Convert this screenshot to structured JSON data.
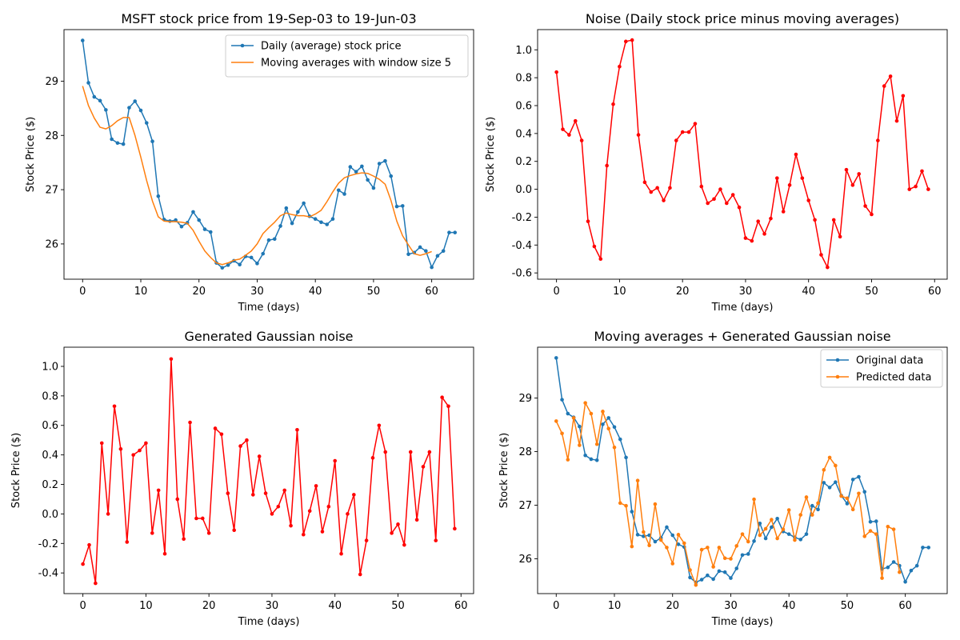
{
  "chart_data": [
    {
      "type": "line",
      "title": "MSFT stock price from 19-Sep-03 to 19-Jun-03",
      "xlabel": "Time (days)",
      "ylabel": "Stock Price ($)",
      "xlim": [
        -3.2,
        67.2
      ],
      "ylim": [
        25.35,
        29.95
      ],
      "xticks": [
        0,
        10,
        20,
        30,
        40,
        50,
        60
      ],
      "yticks": [
        26,
        27,
        28,
        29
      ],
      "legend_position": "top-right",
      "series": [
        {
          "name": "Daily (average) stock price",
          "color": "#1f77b4",
          "marker": true,
          "x_start": 0,
          "values": [
            29.75,
            28.97,
            28.71,
            28.64,
            28.47,
            27.93,
            27.86,
            27.84,
            28.51,
            28.63,
            28.46,
            28.23,
            27.89,
            26.88,
            26.45,
            26.42,
            26.44,
            26.32,
            26.39,
            26.59,
            26.44,
            26.27,
            26.22,
            25.65,
            25.56,
            25.61,
            25.69,
            25.62,
            25.77,
            25.75,
            25.64,
            25.82,
            26.07,
            26.09,
            26.33,
            26.66,
            26.38,
            26.59,
            26.75,
            26.51,
            26.46,
            26.4,
            26.36,
            26.46,
            26.99,
            26.92,
            27.42,
            27.33,
            27.43,
            27.18,
            27.03,
            27.48,
            27.53,
            27.25,
            26.69,
            26.7,
            25.81,
            25.84,
            25.94,
            25.87,
            25.57,
            25.78,
            25.87,
            26.21,
            26.21
          ]
        },
        {
          "name": "Moving averages with window size 5",
          "color": "#ff7f0e",
          "marker": false,
          "x_start": 0,
          "values": [
            28.91,
            28.55,
            28.32,
            28.15,
            28.12,
            28.18,
            28.27,
            28.33,
            28.33,
            28.0,
            27.6,
            27.17,
            26.79,
            26.5,
            26.42,
            26.41,
            26.41,
            26.4,
            26.38,
            26.25,
            26.05,
            25.87,
            25.75,
            25.65,
            25.62,
            25.65,
            25.7,
            25.72,
            25.79,
            25.87,
            26.0,
            26.19,
            26.3,
            26.4,
            26.52,
            26.57,
            26.54,
            26.52,
            26.52,
            26.5,
            26.55,
            26.62,
            26.78,
            26.96,
            27.12,
            27.22,
            27.26,
            27.29,
            27.31,
            27.3,
            27.25,
            27.19,
            27.1,
            26.8,
            26.42,
            26.15,
            25.98,
            25.82,
            25.79,
            25.82,
            25.86
          ]
        }
      ]
    },
    {
      "type": "line",
      "title": "Noise (Daily stock price minus moving averages)",
      "xlabel": "Time (days)",
      "ylabel": "Stock Price ($)",
      "xlim": [
        -3.0,
        62.0
      ],
      "ylim": [
        -0.645,
        1.145
      ],
      "xticks": [
        0,
        10,
        20,
        30,
        40,
        50,
        60
      ],
      "yticks": [
        -0.6,
        -0.4,
        -0.2,
        0.0,
        0.2,
        0.4,
        0.6,
        0.8,
        1.0
      ],
      "series": [
        {
          "color": "#ff0000",
          "marker": true,
          "x_start": 0,
          "values": [
            0.84,
            0.43,
            0.39,
            0.49,
            0.35,
            -0.23,
            -0.41,
            -0.5,
            0.17,
            0.61,
            0.88,
            1.06,
            1.07,
            0.39,
            0.05,
            -0.02,
            0.01,
            -0.08,
            0.01,
            0.35,
            0.41,
            0.41,
            0.47,
            0.02,
            -0.1,
            -0.07,
            0.0,
            -0.1,
            -0.04,
            -0.13,
            -0.35,
            -0.37,
            -0.23,
            -0.32,
            -0.21,
            0.08,
            -0.16,
            0.03,
            0.25,
            0.08,
            -0.08,
            -0.22,
            -0.47,
            -0.56,
            -0.22,
            -0.34,
            0.14,
            0.03,
            0.11,
            -0.12,
            -0.18,
            0.35,
            0.74,
            0.81,
            0.49,
            0.67,
            0.0,
            0.02,
            0.13,
            0.0
          ]
        }
      ]
    },
    {
      "type": "line",
      "title": "Generated Gaussian noise",
      "xlabel": "Time (days)",
      "ylabel": "Stock Price ($)",
      "xlim": [
        -3.0,
        62.0
      ],
      "ylim": [
        -0.54,
        1.13
      ],
      "xticks": [
        0,
        10,
        20,
        30,
        40,
        50,
        60
      ],
      "yticks": [
        -0.4,
        -0.2,
        0.0,
        0.2,
        0.4,
        0.6,
        0.8,
        1.0
      ],
      "series": [
        {
          "color": "#ff0000",
          "marker": true,
          "x_start": 0,
          "values": [
            -0.34,
            -0.21,
            -0.47,
            0.48,
            0.0,
            0.73,
            0.44,
            -0.19,
            0.4,
            0.43,
            0.48,
            -0.13,
            0.16,
            -0.27,
            1.05,
            0.1,
            -0.17,
            0.62,
            -0.03,
            -0.03,
            -0.13,
            0.58,
            0.54,
            0.14,
            -0.11,
            0.46,
            0.5,
            0.13,
            0.39,
            0.14,
            0.0,
            0.05,
            0.16,
            -0.08,
            0.57,
            -0.14,
            0.02,
            0.19,
            -0.12,
            0.05,
            0.36,
            -0.27,
            0.0,
            0.13,
            -0.41,
            -0.18,
            0.38,
            0.6,
            0.42,
            -0.13,
            -0.07,
            -0.21,
            0.42,
            -0.04,
            0.32,
            0.42,
            -0.18,
            0.79,
            0.73,
            -0.1
          ]
        }
      ]
    },
    {
      "type": "line",
      "title": "Moving averages + Generated Gaussian noise",
      "xlabel": "Time (days)",
      "ylabel": "Stock Price ($)",
      "xlim": [
        -3.2,
        67.2
      ],
      "ylim": [
        25.35,
        29.95
      ],
      "xticks": [
        0,
        10,
        20,
        30,
        40,
        50,
        60
      ],
      "yticks": [
        26,
        27,
        28,
        29
      ],
      "legend_position": "top-right",
      "series": [
        {
          "name": "Original data",
          "color": "#1f77b4",
          "marker": true,
          "x_start": 0,
          "values": [
            29.75,
            28.97,
            28.71,
            28.64,
            28.47,
            27.93,
            27.86,
            27.84,
            28.51,
            28.63,
            28.46,
            28.23,
            27.89,
            26.88,
            26.45,
            26.42,
            26.44,
            26.32,
            26.39,
            26.59,
            26.44,
            26.27,
            26.22,
            25.65,
            25.56,
            25.61,
            25.69,
            25.62,
            25.77,
            25.75,
            25.64,
            25.82,
            26.07,
            26.09,
            26.33,
            26.66,
            26.38,
            26.59,
            26.75,
            26.51,
            26.46,
            26.4,
            26.36,
            26.46,
            26.99,
            26.92,
            27.42,
            27.33,
            27.43,
            27.18,
            27.03,
            27.48,
            27.53,
            27.25,
            26.69,
            26.7,
            25.81,
            25.84,
            25.94,
            25.87,
            25.57,
            25.78,
            25.87,
            26.21,
            26.21
          ]
        },
        {
          "name": "Predicted data",
          "color": "#ff7f0e",
          "marker": true,
          "x_start": 0,
          "values": [
            28.57,
            28.34,
            27.85,
            28.63,
            28.12,
            28.91,
            28.71,
            28.14,
            28.75,
            28.43,
            28.08,
            27.04,
            26.99,
            26.23,
            27.46,
            26.5,
            26.25,
            27.02,
            26.35,
            26.21,
            25.91,
            26.45,
            26.29,
            25.79,
            25.51,
            26.17,
            26.21,
            25.85,
            26.21,
            26.01,
            26.0,
            26.24,
            26.46,
            26.32,
            27.11,
            26.44,
            26.56,
            26.73,
            26.38,
            26.55,
            26.91,
            26.35,
            26.82,
            27.15,
            26.82,
            27.04,
            27.66,
            27.89,
            27.74,
            27.17,
            27.13,
            26.92,
            27.22,
            26.42,
            26.52,
            26.46,
            25.64,
            26.6,
            26.55,
            25.75
          ]
        }
      ]
    }
  ]
}
